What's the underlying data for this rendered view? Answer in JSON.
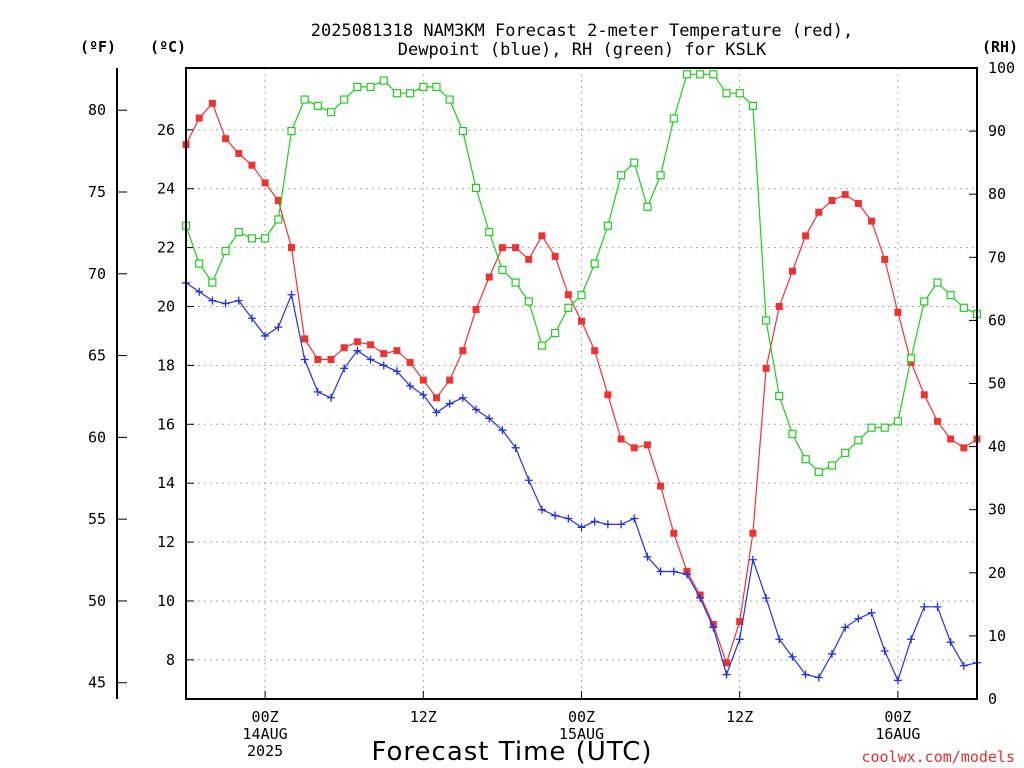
{
  "chart_data": {
    "type": "line",
    "title": "2025081318 NAM3KM Forecast 2-meter Temperature (red),",
    "subtitle": "Dewpoint (blue), RH (green) for KSLK",
    "xlabel": "Forecast Time (UTC)",
    "credit": "coolwx.com/models",
    "units": {
      "fahrenheit": "(ºF)",
      "celsius": "(ºC)",
      "rh": "(RH)"
    },
    "grid": true,
    "x_range_hours": [
      18,
      78
    ],
    "x_ticks": [
      {
        "hour": 24,
        "lines": [
          "00Z",
          "14AUG",
          "2025"
        ]
      },
      {
        "hour": 36,
        "lines": [
          "12Z"
        ]
      },
      {
        "hour": 48,
        "lines": [
          "00Z",
          "15AUG"
        ]
      },
      {
        "hour": 60,
        "lines": [
          "12Z"
        ]
      },
      {
        "hour": 72,
        "lines": [
          "00Z",
          "16AUG"
        ]
      }
    ],
    "celsius_axis": {
      "min": 6.67,
      "max": 28.1,
      "ticks": [
        8,
        10,
        12,
        14,
        16,
        18,
        20,
        22,
        24,
        26
      ]
    },
    "fahrenheit_axis": {
      "ticks": [
        45,
        50,
        55,
        60,
        65,
        70,
        75,
        80
      ]
    },
    "rh_axis": {
      "min": 0,
      "max": 100,
      "ticks": [
        0,
        10,
        20,
        30,
        40,
        50,
        60,
        70,
        80,
        90,
        100
      ]
    },
    "colors": {
      "temperature": "#ee3333",
      "dewpoint": "#2233dd",
      "rh": "#22cc22"
    },
    "series": [
      {
        "name": "Temperature",
        "unit": "C",
        "marker": "filled-square",
        "x": [
          18,
          19,
          20,
          21,
          22,
          23,
          24,
          25,
          26,
          27,
          28,
          29,
          30,
          31,
          32,
          33,
          34,
          35,
          36,
          37,
          38,
          39,
          40,
          41,
          42,
          43,
          44,
          45,
          46,
          47,
          48,
          49,
          50,
          51,
          52,
          53,
          54,
          55,
          56,
          57,
          58,
          59,
          60,
          61,
          62,
          63,
          64,
          65,
          66,
          67,
          68,
          69,
          70,
          71,
          72,
          73,
          74,
          75,
          76,
          77,
          78
        ],
        "values": [
          25.5,
          26.4,
          26.9,
          25.7,
          25.2,
          24.8,
          24.2,
          23.6,
          22.0,
          18.9,
          18.2,
          18.2,
          18.6,
          18.8,
          18.7,
          18.4,
          18.5,
          18.1,
          17.5,
          16.9,
          17.5,
          18.5,
          19.9,
          21.0,
          22.0,
          22.0,
          21.6,
          22.4,
          21.7,
          20.4,
          19.5,
          18.5,
          17.0,
          15.5,
          15.2,
          15.3,
          13.9,
          12.3,
          11.0,
          10.2,
          9.2,
          7.9,
          9.3,
          12.3,
          17.9,
          20.0,
          21.2,
          22.4,
          23.2,
          23.6,
          23.8,
          23.5,
          22.9,
          21.6,
          19.8,
          18.1,
          17.0,
          16.1,
          15.5,
          15.2,
          15.5
        ]
      },
      {
        "name": "Dewpoint",
        "unit": "C",
        "marker": "plus",
        "x": [
          18,
          19,
          20,
          21,
          22,
          23,
          24,
          25,
          26,
          27,
          28,
          29,
          30,
          31,
          32,
          33,
          34,
          35,
          36,
          37,
          38,
          39,
          40,
          41,
          42,
          43,
          44,
          45,
          46,
          47,
          48,
          49,
          50,
          51,
          52,
          53,
          54,
          55,
          56,
          57,
          58,
          59,
          60,
          61,
          62,
          63,
          64,
          65,
          66,
          67,
          68,
          69,
          70,
          71,
          72,
          73,
          74,
          75,
          76,
          77,
          78
        ],
        "values": [
          20.8,
          20.5,
          20.2,
          20.1,
          20.2,
          19.6,
          19.0,
          19.3,
          20.4,
          18.2,
          17.1,
          16.9,
          17.9,
          18.5,
          18.2,
          18.0,
          17.8,
          17.3,
          17.0,
          16.4,
          16.7,
          16.9,
          16.5,
          16.2,
          15.8,
          15.2,
          14.1,
          13.1,
          12.9,
          12.8,
          12.5,
          12.7,
          12.6,
          12.6,
          12.8,
          11.5,
          11.0,
          11.0,
          10.9,
          10.1,
          9.1,
          7.5,
          8.7,
          11.4,
          10.1,
          8.7,
          8.1,
          7.5,
          7.4,
          8.2,
          9.1,
          9.4,
          9.6,
          8.3,
          7.3,
          8.7,
          9.8,
          9.8,
          8.6,
          7.8,
          7.9
        ]
      },
      {
        "name": "RH",
        "unit": "%",
        "marker": "open-square",
        "x": [
          18,
          19,
          20,
          21,
          22,
          23,
          24,
          25,
          26,
          27,
          28,
          29,
          30,
          31,
          32,
          33,
          34,
          35,
          36,
          37,
          38,
          39,
          40,
          41,
          42,
          43,
          44,
          45,
          46,
          47,
          48,
          49,
          50,
          51,
          52,
          53,
          54,
          55,
          56,
          57,
          58,
          59,
          60,
          61,
          62,
          63,
          64,
          65,
          66,
          67,
          68,
          69,
          70,
          71,
          72,
          73,
          74,
          75,
          76,
          77,
          78
        ],
        "values": [
          75,
          69,
          66,
          71,
          74,
          73,
          73,
          76,
          90,
          95,
          94,
          93,
          95,
          97,
          97,
          98,
          96,
          96,
          97,
          97,
          95,
          90,
          81,
          74,
          68,
          66,
          63,
          56,
          58,
          62,
          64,
          69,
          75,
          83,
          85,
          78,
          83,
          92,
          99,
          99,
          99,
          96,
          96,
          94,
          60,
          48,
          42,
          38,
          36,
          37,
          39,
          41,
          43,
          43,
          44,
          54,
          63,
          66,
          64,
          62,
          61
        ]
      }
    ]
  }
}
